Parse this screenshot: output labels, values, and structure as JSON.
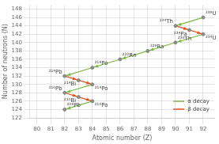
{
  "chart_data": {
    "type": "scatter",
    "xlabel": "Atomic number (Z)",
    "ylabel": "Number of neutrons (N)",
    "xlim": [
      79.5,
      92.8
    ],
    "ylim": [
      122,
      149
    ],
    "xticks": [
      80,
      81,
      82,
      83,
      84,
      85,
      86,
      87,
      88,
      89,
      90,
      91,
      92
    ],
    "yticks": [
      122,
      124,
      126,
      128,
      130,
      132,
      134,
      136,
      138,
      140,
      142,
      144,
      146,
      148
    ],
    "grid": true,
    "legend": "lower right",
    "series": [
      {
        "type": "scatter",
        "color": "#888888",
        "x": [
          92,
          90,
          91,
          92,
          90,
          88,
          86,
          84,
          82,
          83,
          84,
          82,
          83,
          84,
          82
        ],
        "values": [
          146,
          144,
          143,
          142,
          140,
          138,
          136,
          134,
          132,
          131,
          130,
          128,
          127,
          126,
          124
        ],
        "labels": [
          "²³⁸U",
          "²³⁴Th",
          "²³⁴Pa",
          "²³⁴U",
          "²³⁰Th",
          "²²⁶Ra",
          "²²²Rn",
          "²¹⁸Po",
          "²¹⁴Pb",
          "²¹⁴Bi",
          "²¹⁴Po",
          "²¹⁰Pb",
          "²¹⁰Bi",
          "²¹⁰Po",
          "²⁰⁶Pb"
        ]
      },
      {
        "name": "α decay",
        "type": "arrow",
        "color": "#7db843",
        "segments": [
          [
            92,
            146,
            90,
            144
          ],
          [
            92,
            142,
            90,
            140
          ],
          [
            90,
            140,
            88,
            138
          ],
          [
            88,
            138,
            86,
            136
          ],
          [
            86,
            136,
            84,
            134
          ],
          [
            84,
            134,
            82,
            132
          ],
          [
            84,
            130,
            82,
            128
          ],
          [
            84,
            126,
            82,
            124
          ]
        ]
      },
      {
        "name": "β decay",
        "type": "arrow",
        "color": "#e0531e",
        "segments": [
          [
            90,
            144,
            91,
            143
          ],
          [
            91,
            143,
            92,
            142
          ],
          [
            82,
            132,
            83,
            131
          ],
          [
            83,
            131,
            84,
            130
          ],
          [
            82,
            128,
            83,
            127
          ],
          [
            83,
            127,
            84,
            126
          ]
        ]
      }
    ]
  }
}
